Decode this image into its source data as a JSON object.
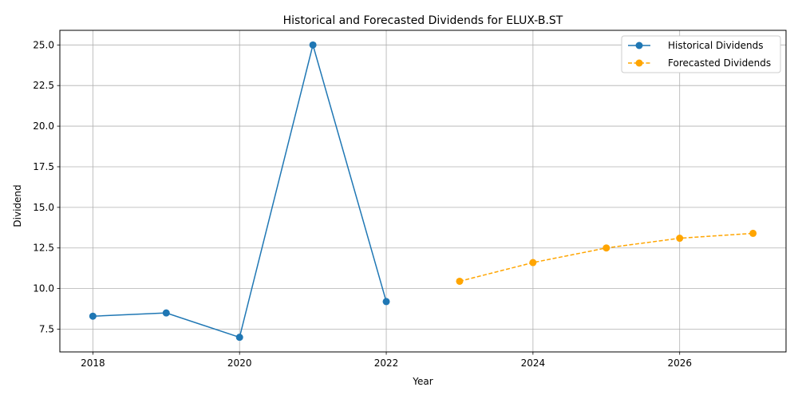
{
  "chart_data": {
    "type": "line",
    "title": "Historical and Forecasted Dividends for ELUX-B.ST",
    "xlabel": "Year",
    "ylabel": "Dividend",
    "xlim": [
      2017.55,
      2027.45
    ],
    "ylim": [
      6.1,
      25.9
    ],
    "xticks": [
      2018,
      2020,
      2022,
      2024,
      2026
    ],
    "yticks": [
      7.5,
      10.0,
      12.5,
      15.0,
      17.5,
      20.0,
      22.5,
      25.0
    ],
    "x_tick_labels": [
      "2018",
      "2020",
      "2022",
      "2024",
      "2026"
    ],
    "y_tick_labels": [
      "7.5",
      "10.0",
      "12.5",
      "15.0",
      "17.5",
      "20.0",
      "22.5",
      "25.0"
    ],
    "grid": true,
    "legend_position": "top-right",
    "series": [
      {
        "name": "Historical Dividends",
        "color": "#1f77b4",
        "style": "solid",
        "x": [
          2018,
          2019,
          2020,
          2021,
          2022
        ],
        "values": [
          8.3,
          8.5,
          7.0,
          25.0,
          9.2
        ]
      },
      {
        "name": "Forecasted Dividends",
        "color": "#ffa500",
        "style": "dashed",
        "x": [
          2023,
          2024,
          2025,
          2026,
          2027
        ],
        "values": [
          10.45,
          11.6,
          12.5,
          13.1,
          13.4
        ]
      }
    ]
  }
}
